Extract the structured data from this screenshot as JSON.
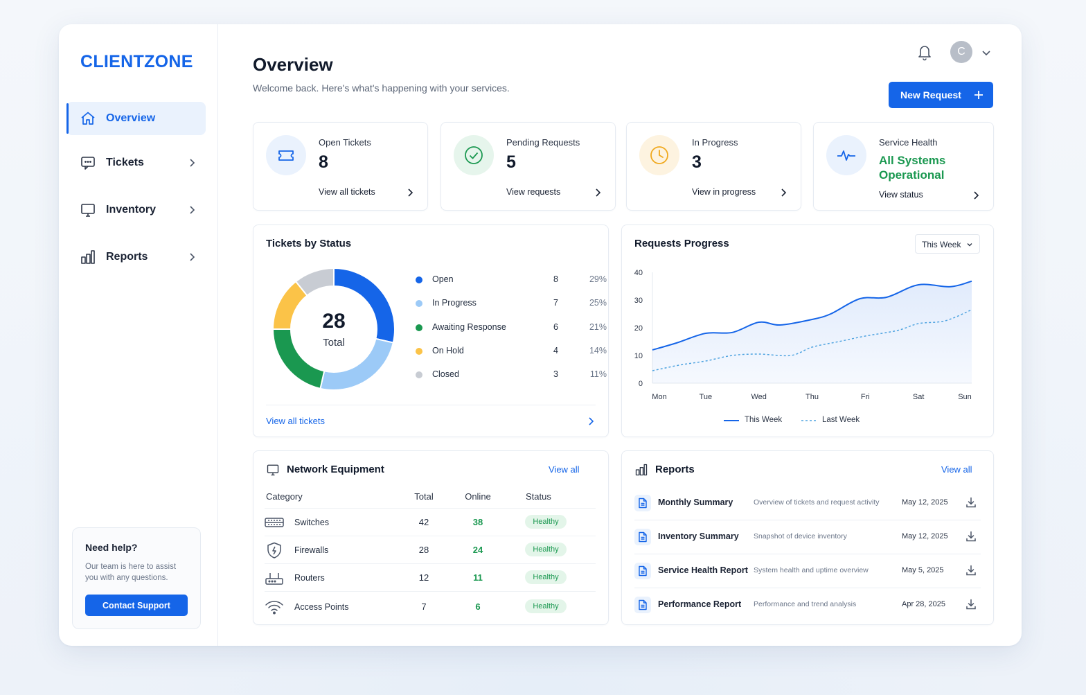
{
  "app": {
    "brand": "CLIENTZONE"
  },
  "sidebar": {
    "items": [
      {
        "label": "Overview",
        "icon": "home-icon",
        "active": true
      },
      {
        "label": "Tickets",
        "icon": "message-icon"
      },
      {
        "label": "Inventory",
        "icon": "monitor-icon"
      },
      {
        "label": "Reports",
        "icon": "bar-chart-icon"
      }
    ],
    "help": {
      "title": "Need help?",
      "text": "Our team is here to assist you with any questions.",
      "button": "Contact Support"
    }
  },
  "header": {
    "title": "Overview",
    "subtitle": "Welcome back. Here's what's happening with your services.",
    "avatar_initial": "C",
    "new_request": "New Request"
  },
  "stats": [
    {
      "label": "Open Tickets",
      "value": "8",
      "link": "View all tickets",
      "icon": "ticket-icon",
      "color": "#1565e8"
    },
    {
      "label": "Pending Requests",
      "value": "5",
      "link": "View requests",
      "icon": "check-circle-icon",
      "color": "#1a9850"
    },
    {
      "label": "In Progress",
      "value": "3",
      "link": "View in progress",
      "icon": "clock-icon",
      "color": "#f0a91e"
    },
    {
      "label": "Service Health",
      "value": "All Systems Operational",
      "link": "View status",
      "icon": "pulse-icon",
      "color": "#1a9850"
    }
  ],
  "tickets_by_status": {
    "title": "Tickets by Status",
    "total_value": "28",
    "total_label": "Total",
    "link": "View all tickets",
    "items": [
      {
        "name": "Open",
        "value": 8,
        "value_text": "8",
        "pct": "29%",
        "color": "#1565e8"
      },
      {
        "name": "In Progress",
        "value": 7,
        "value_text": "7",
        "pct": "25%",
        "color": "#9ccaf7"
      },
      {
        "name": "Awaiting Response",
        "value": 6,
        "value_text": "6",
        "pct": "21%",
        "color": "#1a9850"
      },
      {
        "name": "On Hold",
        "value": 4,
        "value_text": "4",
        "pct": "14%",
        "color": "#fbc348"
      },
      {
        "name": "Closed",
        "value": 3,
        "value_text": "3",
        "pct": "11%",
        "color": "#c8ccd3"
      }
    ]
  },
  "requests_progress": {
    "title": "Requests Progress",
    "range": "This Week",
    "legend_this": "This Week",
    "legend_last": "Last Week"
  },
  "chart_data": {
    "type": "line",
    "x": [
      "Mon",
      "Tue",
      "Wed",
      "Thu",
      "Fri",
      "Sat",
      "Sun"
    ],
    "ylim": [
      0,
      40
    ],
    "yticks": [
      0,
      10,
      20,
      30,
      40
    ],
    "series": [
      {
        "name": "This Week",
        "style": "solid",
        "color": "#1565e8",
        "points": [
          [
            0,
            12
          ],
          [
            0.45,
            14.5
          ],
          [
            1,
            18
          ],
          [
            1.5,
            18.3
          ],
          [
            2,
            22
          ],
          [
            2.4,
            21
          ],
          [
            3,
            23
          ],
          [
            3.35,
            25
          ],
          [
            3.9,
            30.5
          ],
          [
            4.4,
            31
          ],
          [
            5,
            35.5
          ],
          [
            5.6,
            34.8
          ],
          [
            6,
            36.8
          ]
        ]
      },
      {
        "name": "Last Week",
        "style": "dashed",
        "color": "#4ea3e0",
        "points": [
          [
            0,
            4.5
          ],
          [
            0.5,
            6.5
          ],
          [
            1,
            8
          ],
          [
            1.5,
            10
          ],
          [
            2,
            10.5
          ],
          [
            2.6,
            10
          ],
          [
            3,
            13
          ],
          [
            3.5,
            15
          ],
          [
            4,
            17
          ],
          [
            4.6,
            19
          ],
          [
            5,
            21.5
          ],
          [
            5.5,
            22.5
          ],
          [
            6,
            26.5
          ]
        ]
      }
    ],
    "grid": false,
    "legend": "bottom"
  },
  "network_equipment": {
    "title": "Network Equipment",
    "link": "View all",
    "columns": [
      "Category",
      "Total",
      "Online",
      "Status"
    ],
    "rows": [
      {
        "category": "Switches",
        "total": "42",
        "online": "38",
        "status": "Healthy",
        "icon": "switch-icon"
      },
      {
        "category": "Firewalls",
        "total": "28",
        "online": "24",
        "status": "Healthy",
        "icon": "shield-icon"
      },
      {
        "category": "Routers",
        "total": "12",
        "online": "11",
        "status": "Healthy",
        "icon": "router-icon"
      },
      {
        "category": "Access Points",
        "total": "7",
        "online": "6",
        "status": "Healthy",
        "icon": "wifi-icon"
      }
    ]
  },
  "reports": {
    "title": "Reports",
    "link": "View all",
    "rows": [
      {
        "name": "Monthly Summary",
        "desc": "Overview of tickets and request activity",
        "date": "May 12, 2025"
      },
      {
        "name": "Inventory Summary",
        "desc": "Snapshot of device inventory",
        "date": "May 12, 2025"
      },
      {
        "name": "Service Health Report",
        "desc": "System health and uptime overview",
        "date": "May 5, 2025"
      },
      {
        "name": "Performance Report",
        "desc": "Performance and trend analysis",
        "date": "Apr 28, 2025"
      }
    ]
  }
}
